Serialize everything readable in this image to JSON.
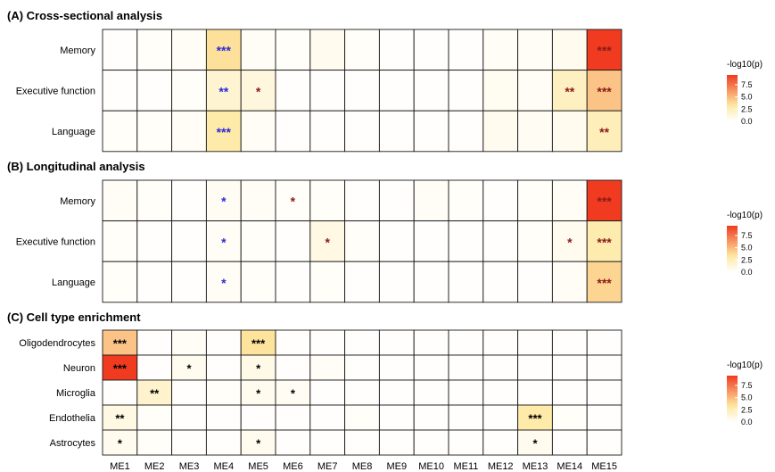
{
  "chart_data": {
    "type": "heatmap",
    "columns": [
      "ME1",
      "ME2",
      "ME3",
      "ME4",
      "ME5",
      "ME6",
      "ME7",
      "ME8",
      "ME9",
      "ME10",
      "ME11",
      "ME12",
      "ME13",
      "ME14",
      "ME15"
    ],
    "colorbar": {
      "label": "-log10(p)",
      "ticks": [
        "7.5",
        "5.0",
        "2.5",
        "0.0"
      ],
      "range": [
        0,
        9.5
      ],
      "low_color": "#ffffff",
      "mid_color": "#fee8a0",
      "high_color": "#f03b20"
    },
    "star_colors": {
      "blue": "#2b2bd9",
      "red": "#8b1a1a",
      "black": "#000000"
    },
    "panels": [
      {
        "title": "(A) Cross-sectional analysis",
        "rows": [
          "Memory",
          "Executive function",
          "Language"
        ],
        "values": [
          [
            0.1,
            0.2,
            0.3,
            3.6,
            0.3,
            0.2,
            0.6,
            0.2,
            0.1,
            0.1,
            0.1,
            0.3,
            0.3,
            0.6,
            9.5
          ],
          [
            0.1,
            0.1,
            0.2,
            1.6,
            1.2,
            0.1,
            0.1,
            0.1,
            0.1,
            0.1,
            0.1,
            0.5,
            0.3,
            2.2,
            4.6
          ],
          [
            0.2,
            0.2,
            0.3,
            3.0,
            0.3,
            0.1,
            0.1,
            0.1,
            0.1,
            0.1,
            0.1,
            0.6,
            0.4,
            0.6,
            2.4
          ]
        ],
        "stars": [
          [
            "",
            "",
            "",
            "***",
            "",
            "",
            "",
            "",
            "",
            "",
            "",
            "",
            "",
            "",
            "***"
          ],
          [
            "",
            "",
            "",
            "**",
            "*",
            "",
            "",
            "",
            "",
            "",
            "",
            "",
            "",
            "**",
            "***"
          ],
          [
            "",
            "",
            "",
            "***",
            "",
            "",
            "",
            "",
            "",
            "",
            "",
            "",
            "",
            "",
            "**"
          ]
        ],
        "star_color": [
          [
            "",
            "",
            "",
            "blue",
            "",
            "",
            "",
            "",
            "",
            "",
            "",
            "",
            "",
            "",
            "red"
          ],
          [
            "",
            "",
            "",
            "blue",
            "red",
            "",
            "",
            "",
            "",
            "",
            "",
            "",
            "",
            "red",
            "red"
          ],
          [
            "",
            "",
            "",
            "blue",
            "",
            "",
            "",
            "",
            "",
            "",
            "",
            "",
            "",
            "",
            "red"
          ]
        ]
      },
      {
        "title": "(B) Longitudinal analysis",
        "rows": [
          "Memory",
          "Executive function",
          "Language"
        ],
        "values": [
          [
            0.3,
            0.2,
            0.1,
            0.4,
            0.3,
            0.2,
            0.2,
            0.1,
            0.1,
            0.3,
            0.2,
            0.1,
            0.2,
            0.3,
            9.5
          ],
          [
            0.2,
            0.1,
            0.1,
            0.3,
            0.2,
            0.1,
            1.0,
            0.2,
            0.1,
            0.1,
            0.1,
            0.1,
            0.2,
            0.6,
            2.8
          ],
          [
            0.2,
            0.1,
            0.1,
            0.3,
            0.2,
            0.1,
            0.2,
            0.1,
            0.1,
            0.1,
            0.1,
            0.1,
            0.1,
            0.3,
            4.0
          ]
        ],
        "stars": [
          [
            "",
            "",
            "",
            "*",
            "",
            "*",
            "",
            "",
            "",
            "",
            "",
            "",
            "",
            "",
            "***"
          ],
          [
            "",
            "",
            "",
            "*",
            "",
            "",
            "*",
            "",
            "",
            "",
            "",
            "",
            "",
            "*",
            "***"
          ],
          [
            "",
            "",
            "",
            "*",
            "",
            "",
            "",
            "",
            "",
            "",
            "",
            "",
            "",
            "",
            "***"
          ]
        ],
        "star_color": [
          [
            "",
            "",
            "",
            "blue",
            "",
            "red",
            "",
            "",
            "",
            "",
            "",
            "",
            "",
            "",
            "red"
          ],
          [
            "",
            "",
            "",
            "blue",
            "",
            "",
            "red",
            "",
            "",
            "",
            "",
            "",
            "",
            "red",
            "red"
          ],
          [
            "",
            "",
            "",
            "blue",
            "",
            "",
            "",
            "",
            "",
            "",
            "",
            "",
            "",
            "",
            "red"
          ]
        ]
      },
      {
        "title": "(C) Cell type enrichment",
        "rows": [
          "Oligodendrocytes",
          "Neuron",
          "Microglia",
          "Endothelia",
          "Astrocytes"
        ],
        "values": [
          [
            4.6,
            0.1,
            0.3,
            0.1,
            3.5,
            0.1,
            0.1,
            0.1,
            0.1,
            0.1,
            0.1,
            0.1,
            0.1,
            0.1,
            0.1
          ],
          [
            9.5,
            0.1,
            0.6,
            0.1,
            0.8,
            0.1,
            0.3,
            0.1,
            0.1,
            0.1,
            0.1,
            0.1,
            0.1,
            0.1,
            0.1
          ],
          [
            0.1,
            1.8,
            0.1,
            0.2,
            0.6,
            0.4,
            0.1,
            0.1,
            0.1,
            0.1,
            0.1,
            0.1,
            0.1,
            0.1,
            0.1
          ],
          [
            1.0,
            0.2,
            0.1,
            0.1,
            0.1,
            0.1,
            0.1,
            0.2,
            0.1,
            0.1,
            0.1,
            0.1,
            3.0,
            0.2,
            0.1
          ],
          [
            0.6,
            0.2,
            0.1,
            0.1,
            0.6,
            0.1,
            0.1,
            0.1,
            0.1,
            0.1,
            0.1,
            0.1,
            0.6,
            0.1,
            0.1
          ]
        ],
        "stars": [
          [
            "***",
            "",
            "",
            "",
            "***",
            "",
            "",
            "",
            "",
            "",
            "",
            "",
            "",
            "",
            ""
          ],
          [
            "***",
            "",
            "*",
            "",
            "*",
            "",
            "",
            "",
            "",
            "",
            "",
            "",
            "",
            "",
            ""
          ],
          [
            "",
            "**",
            "",
            "",
            "*",
            "*",
            "",
            "",
            "",
            "",
            "",
            "",
            "",
            "",
            ""
          ],
          [
            "**",
            "",
            "",
            "",
            "",
            "",
            "",
            "",
            "",
            "",
            "",
            "",
            "***",
            "",
            ""
          ],
          [
            "*",
            "",
            "",
            "",
            "*",
            "",
            "",
            "",
            "",
            "",
            "",
            "",
            "*",
            "",
            ""
          ]
        ],
        "star_color": "black"
      }
    ]
  }
}
